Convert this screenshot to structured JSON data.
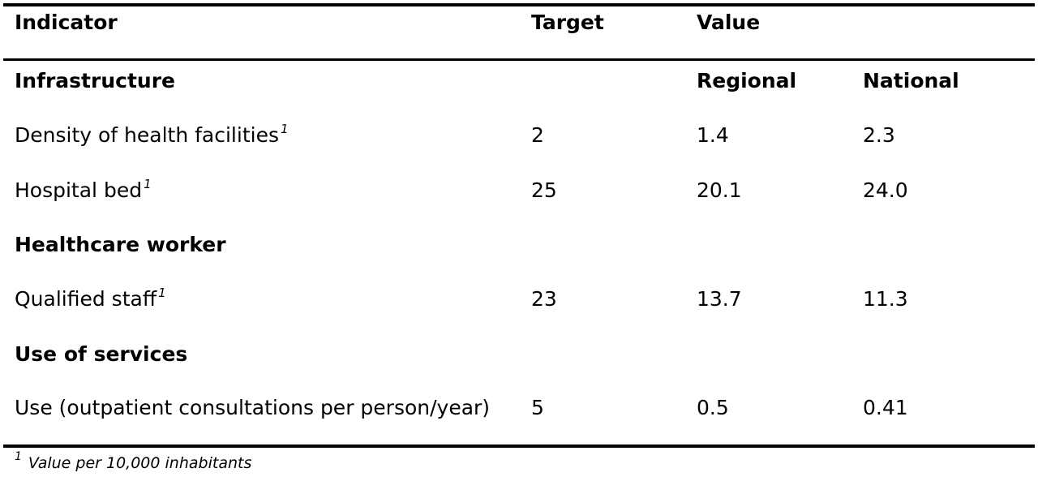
{
  "table": {
    "header": {
      "indicator": "Indicator",
      "target": "Target",
      "value": "Value"
    },
    "sections": {
      "infrastructure": "Infrastructure",
      "healthcare_worker": "Healthcare worker",
      "use_of_services": "Use of services"
    },
    "subheader": {
      "regional": "Regional",
      "national": "National"
    },
    "rows": [
      {
        "indicator": "Density of health facilities",
        "marker": "1",
        "target": "2",
        "regional": "1.4",
        "national": "2.3"
      },
      {
        "indicator": "Hospital bed",
        "marker": "1",
        "target": "25",
        "regional": "20.1",
        "national": "24.0"
      },
      {
        "indicator": "Qualified staff",
        "marker": "1",
        "target": "23",
        "regional": "13.7",
        "national": "11.3"
      },
      {
        "indicator": "Use (outpatient consultations per person/year)",
        "marker": "",
        "target": "5",
        "regional": "0.5",
        "national": "0.41"
      }
    ]
  },
  "footnote": {
    "marker": "1",
    "text": "Value per 10,000 inhabitants"
  }
}
